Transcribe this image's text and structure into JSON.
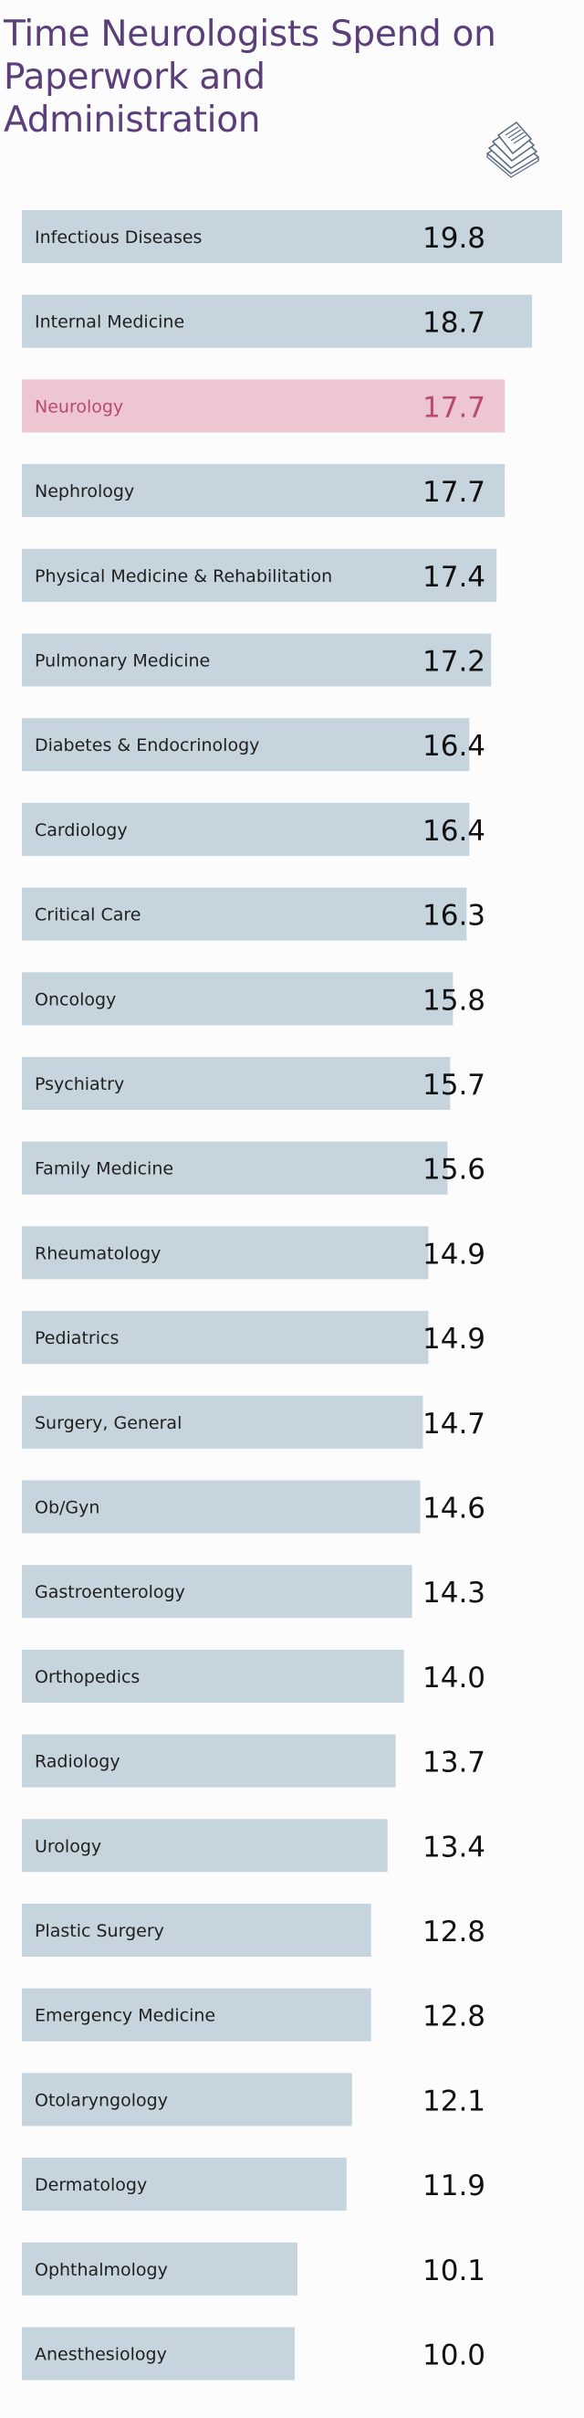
{
  "colors": {
    "title": "#5a3f7a",
    "bar": "#c6d4de",
    "bar_highlight": "#edc6d1",
    "label_text": "#1f1f1f",
    "value_text": "#111111",
    "value_highlight": "#b84a6e",
    "icon_stroke": "#5a6d85"
  },
  "icon": "paperwork-stack-icon",
  "chart_data": {
    "type": "bar",
    "orientation": "horizontal",
    "title": "Time Neurologists Spend on Paperwork and Administration",
    "categories": [
      "Infectious Diseases",
      "Internal Medicine",
      "Neurology",
      "Nephrology",
      "Physical Medicine & Rehabilitation",
      "Pulmonary Medicine",
      "Diabetes & Endocrinology",
      "Cardiology",
      "Critical Care",
      "Oncology",
      "Psychiatry",
      "Family Medicine",
      "Rheumatology",
      "Pediatrics",
      "Surgery, General",
      "Ob/Gyn",
      "Gastroenterology",
      "Orthopedics",
      "Radiology",
      "Urology",
      "Plastic Surgery",
      "Emergency Medicine",
      "Otolaryngology",
      "Dermatology",
      "Ophthalmology",
      "Anesthesiology"
    ],
    "values": [
      19.8,
      18.7,
      17.7,
      17.7,
      17.4,
      17.2,
      16.4,
      16.4,
      16.3,
      15.8,
      15.7,
      15.6,
      14.9,
      14.9,
      14.7,
      14.6,
      14.3,
      14.0,
      13.7,
      13.4,
      12.8,
      12.8,
      12.1,
      11.9,
      10.1,
      10.0
    ],
    "value_labels": [
      "19.8",
      "18.7",
      "17.7",
      "17.7",
      "17.4",
      "17.2",
      "16.4",
      "16.4",
      "16.3",
      "15.8",
      "15.7",
      "15.6",
      "14.9",
      "14.9",
      "14.7",
      "14.6",
      "14.3",
      "14.0",
      "13.7",
      "13.4",
      "12.8",
      "12.8",
      "12.1",
      "11.9",
      "10.1",
      "10.0"
    ],
    "highlight": "Neurology",
    "xlim": [
      0,
      19.8
    ],
    "xlabel": "",
    "ylabel": "",
    "grid": false,
    "legend": "none"
  }
}
